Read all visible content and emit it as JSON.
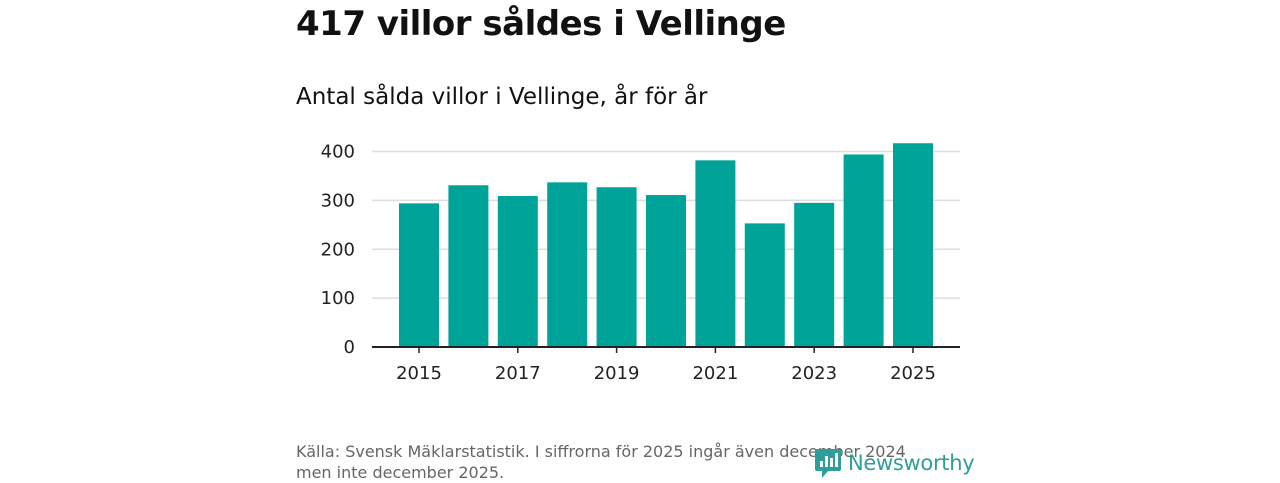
{
  "header": {
    "title": "417 villor såldes i Vellinge",
    "subtitle": "Antal sålda villor i Vellinge, år för år"
  },
  "footer": {
    "source_line1": "Källa: Svensk Mäklarstatistik. I siffrorna för 2025 ingår även december 2024",
    "source_line2": "men inte december 2025.",
    "brand": "Newsworthy"
  },
  "colors": {
    "bar": "#00a398",
    "grid": "#dddddd",
    "axis": "#222222",
    "brand": "#2e9e98"
  },
  "chart_data": {
    "type": "bar",
    "title": "Antal sålda villor i Vellinge, år för år",
    "xlabel": "",
    "ylabel": "",
    "categories": [
      "2015",
      "2016",
      "2017",
      "2018",
      "2019",
      "2020",
      "2021",
      "2022",
      "2023",
      "2024",
      "2025"
    ],
    "values": [
      294,
      331,
      309,
      337,
      327,
      311,
      382,
      253,
      295,
      394,
      417
    ],
    "ylim": [
      0,
      440
    ],
    "yticks": [
      0,
      100,
      200,
      300,
      400
    ],
    "xtick_labels": [
      "2015",
      "2017",
      "2019",
      "2021",
      "2023",
      "2025"
    ],
    "grid": true,
    "legend": "none"
  }
}
